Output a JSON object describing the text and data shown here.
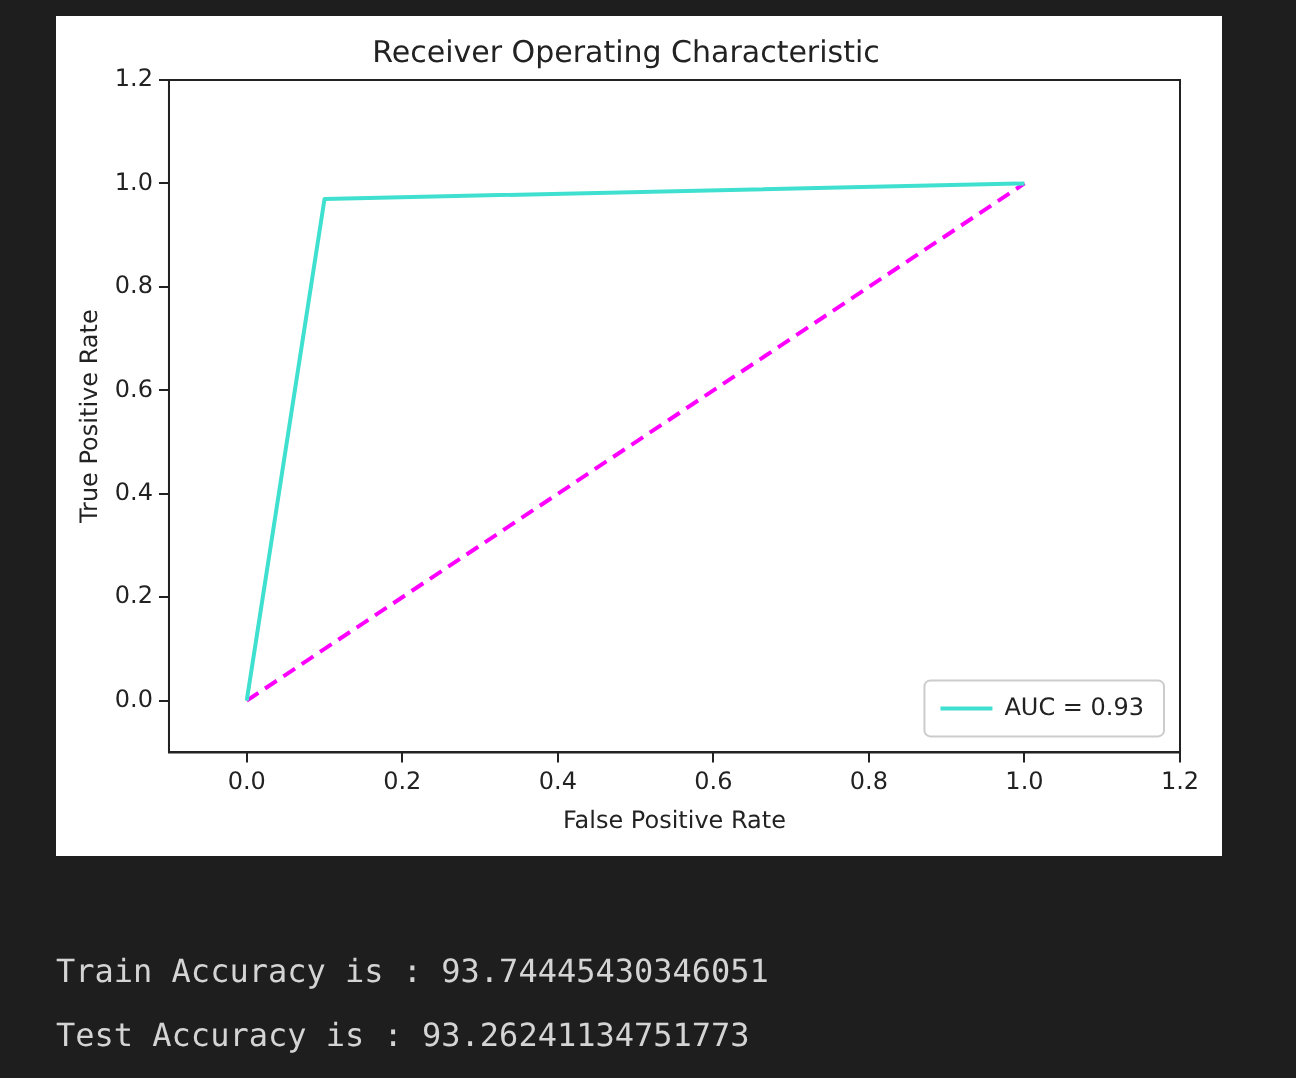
{
  "chart_data": {
    "type": "line",
    "title": "Receiver Operating Characteristic",
    "xlabel": "False Positive Rate",
    "ylabel": "True Positive Rate",
    "xlim": [
      -0.1,
      1.2
    ],
    "xticks": [
      {
        "value": 0,
        "label": "0.0"
      },
      0.2,
      0.4,
      0.6,
      0.8,
      {
        "value": 1,
        "label": "1.0"
      },
      1.2
    ],
    "ylim": [
      -0.1,
      1.2
    ],
    "yticks": [
      {
        "value": 0,
        "label": "0.0"
      },
      0.2,
      0.4,
      0.6,
      0.8,
      {
        "value": 1,
        "label": "1.0"
      },
      1.2
    ],
    "series": [
      {
        "name": "AUC = 0.93",
        "color": "#40e0d0",
        "x": [
          0,
          0.1,
          1
        ],
        "values": [
          0,
          0.97,
          1
        ],
        "line_style": "solid"
      },
      {
        "color": "#ff00ff",
        "x": [
          0,
          1
        ],
        "values": [
          0,
          1
        ],
        "line_style": "dashed"
      }
    ],
    "grid": false,
    "legend": "bottom right",
    "marker": "none",
    "annotations": [
      "Train Accuracy is : 93.74445430346051",
      "Test Accuracy is : 93.26241134751773"
    ]
  }
}
